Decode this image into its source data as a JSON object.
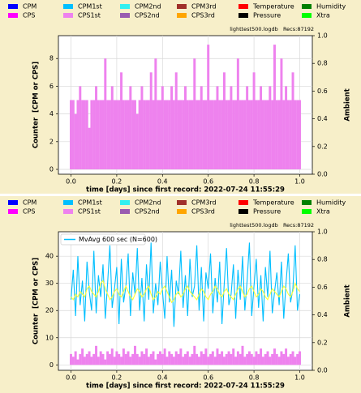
{
  "chart_data": [
    {
      "type": "bar",
      "legend": [
        {
          "name": "CPM",
          "color": "#0000ff"
        },
        {
          "name": "CPM1st",
          "color": "#00bfff"
        },
        {
          "name": "CPM2nd",
          "color": "#33f0f0"
        },
        {
          "name": "CPM3rd",
          "color": "#a0302a"
        },
        {
          "name": "Temperature",
          "color": "#ff0000"
        },
        {
          "name": "Humidity",
          "color": "#008000"
        },
        {
          "name": "CPS",
          "color": "#ff00ff"
        },
        {
          "name": "CPS1st",
          "color": "#ee82ee"
        },
        {
          "name": "CPS2nd",
          "color": "#9a5bb0"
        },
        {
          "name": "CPS3rd",
          "color": "#ffa500"
        },
        {
          "name": "Pressure",
          "color": "#000000"
        },
        {
          "name": "Xtra",
          "color": "#00ff00"
        }
      ],
      "info": "lighttest500.logdb   Recs:87192",
      "xlabel": "time [days] since first record: 2022-07-24 11:55:29",
      "ylabel": "Counter  [CPM or CPS]",
      "y2label": "Ambient",
      "grid": true,
      "xlim": [
        -0.055,
        1.055
      ],
      "xticks": [
        {
          "value": 0,
          "label": "0.0"
        },
        {
          "value": 0.2,
          "label": "0.2"
        },
        {
          "value": 0.4,
          "label": "0.4"
        },
        {
          "value": 0.6,
          "label": "0.6"
        },
        {
          "value": 0.8,
          "label": "0.8"
        },
        {
          "value": 1,
          "label": "1.0"
        }
      ],
      "ylim": [
        -0.35,
        9.65
      ],
      "yticks": [
        0,
        2,
        4,
        6,
        8
      ],
      "y2lim": [
        0,
        1
      ],
      "y2ticks": [
        {
          "value": 0,
          "label": "0.0"
        },
        {
          "value": 0.2,
          "label": "0.2"
        },
        {
          "value": 0.4,
          "label": "0.4"
        },
        {
          "value": 0.6,
          "label": "0.6"
        },
        {
          "value": 0.8,
          "label": "0.8"
        },
        {
          "value": 1,
          "label": "1.0"
        }
      ],
      "x": [
        0,
        0.01,
        0.02,
        0.03,
        0.04,
        0.05,
        0.06,
        0.07,
        0.08,
        0.09,
        0.1,
        0.11,
        0.12,
        0.13,
        0.14,
        0.15,
        0.16,
        0.17,
        0.18,
        0.19,
        0.2,
        0.21,
        0.22,
        0.23,
        0.24,
        0.25,
        0.26,
        0.27,
        0.28,
        0.29,
        0.3,
        0.31,
        0.32,
        0.33,
        0.34,
        0.35,
        0.36,
        0.37,
        0.38,
        0.39,
        0.4,
        0.41,
        0.42,
        0.43,
        0.44,
        0.45,
        0.46,
        0.47,
        0.48,
        0.49,
        0.5,
        0.51,
        0.52,
        0.53,
        0.54,
        0.55,
        0.56,
        0.57,
        0.58,
        0.59,
        0.6,
        0.61,
        0.62,
        0.63,
        0.64,
        0.65,
        0.66,
        0.67,
        0.68,
        0.69,
        0.7,
        0.71,
        0.72,
        0.73,
        0.74,
        0.75,
        0.76,
        0.77,
        0.78,
        0.79,
        0.8,
        0.81,
        0.82,
        0.83,
        0.84,
        0.85,
        0.86,
        0.87,
        0.88,
        0.89,
        0.9,
        0.91,
        0.92,
        0.93,
        0.94,
        0.95,
        0.96,
        0.97,
        0.98,
        0.99,
        1
      ],
      "series": [
        {
          "type": "bar",
          "color": "#ee82ee",
          "values": [
            5,
            5,
            4,
            5,
            6,
            5,
            5,
            5,
            3,
            5,
            5,
            6,
            5,
            5,
            5,
            8,
            5,
            5,
            6,
            5,
            5,
            5,
            7,
            5,
            5,
            5,
            6,
            5,
            5,
            4,
            5,
            6,
            5,
            5,
            5,
            7,
            5,
            8,
            5,
            5,
            6,
            5,
            5,
            5,
            6,
            5,
            7,
            5,
            5,
            5,
            6,
            5,
            5,
            5,
            8,
            5,
            5,
            6,
            5,
            5,
            9,
            5,
            5,
            5,
            6,
            5,
            5,
            7,
            5,
            5,
            6,
            5,
            5,
            8,
            5,
            5,
            5,
            6,
            5,
            5,
            7,
            5,
            5,
            6,
            5,
            5,
            5,
            6,
            5,
            9,
            5,
            5,
            8,
            5,
            6,
            5,
            5,
            7,
            5,
            5,
            5
          ]
        }
      ]
    },
    {
      "type": "combo",
      "legend": [
        {
          "name": "CPM",
          "color": "#0000ff"
        },
        {
          "name": "CPM1st",
          "color": "#00bfff"
        },
        {
          "name": "CPM2nd",
          "color": "#33f0f0"
        },
        {
          "name": "CPM3rd",
          "color": "#a0302a"
        },
        {
          "name": "Temperature",
          "color": "#ff0000"
        },
        {
          "name": "Humidity",
          "color": "#008000"
        },
        {
          "name": "CPS",
          "color": "#ff00ff"
        },
        {
          "name": "CPS1st",
          "color": "#ee82ee"
        },
        {
          "name": "CPS2nd",
          "color": "#9a5bb0"
        },
        {
          "name": "CPS3rd",
          "color": "#ffa500"
        },
        {
          "name": "Pressure",
          "color": "#000000"
        },
        {
          "name": "Xtra",
          "color": "#00ff00"
        }
      ],
      "info": "lighttest500.logdb   Recs:87192",
      "xlabel": "time [days] since first record: 2022-07-24 11:55:29",
      "ylabel": "Counter  [CPM or CPS]",
      "y2label": "Ambient",
      "grid": true,
      "plot_legend": {
        "label": "MvAvg 600 sec (N=600)",
        "color": "#00bfff"
      },
      "xlim": [
        -0.055,
        1.055
      ],
      "xticks": [
        {
          "value": 0,
          "label": "0.0"
        },
        {
          "value": 0.2,
          "label": "0.2"
        },
        {
          "value": 0.4,
          "label": "0.4"
        },
        {
          "value": 0.6,
          "label": "0.6"
        },
        {
          "value": 0.8,
          "label": "0.8"
        },
        {
          "value": 1,
          "label": "1.0"
        }
      ],
      "ylim": [
        -2,
        49
      ],
      "yticks": [
        0,
        10,
        20,
        30,
        40
      ],
      "y2lim": [
        0,
        1
      ],
      "y2ticks": [
        {
          "value": 0,
          "label": "0.0"
        },
        {
          "value": 0.2,
          "label": "0.2"
        },
        {
          "value": 0.4,
          "label": "0.4"
        },
        {
          "value": 0.6,
          "label": "0.6"
        },
        {
          "value": 0.8,
          "label": "0.8"
        },
        {
          "value": 1,
          "label": "1.0"
        }
      ],
      "x": [
        0,
        0.01,
        0.02,
        0.03,
        0.04,
        0.05,
        0.06,
        0.07,
        0.08,
        0.09,
        0.1,
        0.11,
        0.12,
        0.13,
        0.14,
        0.15,
        0.16,
        0.17,
        0.18,
        0.19,
        0.2,
        0.21,
        0.22,
        0.23,
        0.24,
        0.25,
        0.26,
        0.27,
        0.28,
        0.29,
        0.3,
        0.31,
        0.32,
        0.33,
        0.34,
        0.35,
        0.36,
        0.37,
        0.38,
        0.39,
        0.4,
        0.41,
        0.42,
        0.43,
        0.44,
        0.45,
        0.46,
        0.47,
        0.48,
        0.49,
        0.5,
        0.51,
        0.52,
        0.53,
        0.54,
        0.55,
        0.56,
        0.57,
        0.58,
        0.59,
        0.6,
        0.61,
        0.62,
        0.63,
        0.64,
        0.65,
        0.66,
        0.67,
        0.68,
        0.69,
        0.7,
        0.71,
        0.72,
        0.73,
        0.74,
        0.75,
        0.76,
        0.77,
        0.78,
        0.79,
        0.8,
        0.81,
        0.82,
        0.83,
        0.84,
        0.85,
        0.86,
        0.87,
        0.88,
        0.89,
        0.9,
        0.91,
        0.92,
        0.93,
        0.94,
        0.95,
        0.96,
        0.97,
        0.98,
        0.99,
        1
      ],
      "series": [
        {
          "type": "line",
          "color": "#00bfff",
          "values": [
            24,
            35,
            18,
            40,
            22,
            31,
            16,
            38,
            27,
            20,
            42,
            19,
            33,
            25,
            37,
            17,
            30,
            44,
            21,
            28,
            36,
            15,
            39,
            23,
            29,
            41,
            18,
            34,
            26,
            43,
            20,
            32,
            16,
            37,
            24,
            45,
            19,
            30,
            22,
            38,
            27,
            17,
            40,
            23,
            35,
            14,
            31,
            26,
            42,
            21,
            33,
            18,
            39,
            25,
            29,
            44,
            20,
            36,
            16,
            34,
            28,
            41,
            19,
            32,
            23,
            38,
            15,
            30,
            43,
            22,
            26,
            37,
            17,
            35,
            24,
            40,
            20,
            31,
            45,
            18,
            29,
            39,
            21,
            33,
            16,
            36,
            25,
            42,
            19,
            27,
            34,
            22,
            38,
            17,
            30,
            41,
            23,
            28,
            44,
            20,
            26
          ]
        },
        {
          "type": "bar",
          "color": "#ee82ee",
          "values": [
            4,
            3,
            5,
            2,
            4,
            6,
            3,
            4,
            5,
            3,
            4,
            7,
            3,
            5,
            4,
            2,
            5,
            4,
            6,
            3,
            5,
            4,
            3,
            6,
            4,
            5,
            3,
            4,
            7,
            4,
            3,
            5,
            4,
            6,
            3,
            4,
            5,
            2,
            4,
            5,
            4,
            6,
            3,
            5,
            4,
            3,
            5,
            4,
            6,
            3,
            4,
            5,
            3,
            4,
            7,
            4,
            3,
            5,
            4,
            6,
            3,
            4,
            5,
            3,
            6,
            4,
            5,
            3,
            4,
            5,
            4,
            6,
            3,
            5,
            4,
            7,
            3,
            4,
            5,
            4,
            3,
            5,
            4,
            6,
            3,
            4,
            5,
            3,
            4,
            6,
            4,
            3,
            5,
            4,
            6,
            3,
            4,
            5,
            3,
            4,
            5
          ]
        },
        {
          "type": "line",
          "color": "#ffff33",
          "values": [
            25,
            24,
            26,
            25,
            27,
            26,
            25,
            28,
            29,
            27,
            26,
            25,
            27,
            30,
            31,
            28,
            26,
            24,
            25,
            27,
            28,
            26,
            25,
            27,
            29,
            27,
            25,
            24,
            26,
            28,
            27,
            25,
            26,
            28,
            29,
            26,
            24,
            25,
            27,
            26,
            28,
            29,
            27,
            25,
            23,
            24,
            26,
            27,
            25,
            26,
            28,
            29,
            27,
            26,
            25,
            24,
            26,
            28,
            27,
            25,
            24,
            26,
            27,
            29,
            28,
            26,
            25,
            27,
            28,
            26,
            25,
            24,
            26,
            28,
            29,
            27,
            25,
            26,
            28,
            29,
            27,
            25,
            26,
            28,
            27,
            25,
            24,
            26,
            28,
            27,
            26,
            25,
            27,
            29,
            28,
            26,
            25,
            27,
            30,
            28,
            27
          ]
        }
      ]
    }
  ]
}
